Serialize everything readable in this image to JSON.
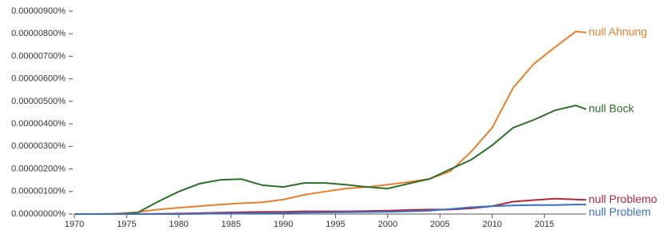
{
  "chart_data": {
    "type": "line",
    "x": [
      1970,
      1972,
      1974,
      1976,
      1978,
      1980,
      1982,
      1984,
      1986,
      1988,
      1990,
      1992,
      1994,
      1996,
      1998,
      2000,
      2002,
      2004,
      2006,
      2008,
      2010,
      2012,
      2014,
      2016,
      2018,
      2019
    ],
    "series": [
      {
        "name": "null Ahnung",
        "color": "#e8812d",
        "values": [
          0,
          0,
          2e-10,
          8e-10,
          2e-09,
          2.8e-09,
          3.5e-09,
          4.2e-09,
          4.8e-09,
          5.2e-09,
          6.4e-09,
          8.5e-09,
          1e-08,
          1.13e-08,
          1.2e-08,
          1.3e-08,
          1.42e-08,
          1.56e-08,
          1.9e-08,
          2.77e-08,
          3.83e-08,
          5.6e-08,
          6.67e-08,
          7.4e-08,
          8.1e-08,
          8.05e-08
        ]
      },
      {
        "name": "null Bock",
        "color": "#2f6e2a",
        "values": [
          0,
          0,
          0,
          5e-10,
          5.5e-09,
          1e-08,
          1.35e-08,
          1.52e-08,
          1.55e-08,
          1.28e-08,
          1.2e-08,
          1.38e-08,
          1.38e-08,
          1.3e-08,
          1.2e-08,
          1.13e-08,
          1.35e-08,
          1.56e-08,
          1.99e-08,
          2.41e-08,
          3.05e-08,
          3.83e-08,
          4.18e-08,
          4.6e-08,
          4.82e-08,
          4.65e-08
        ]
      },
      {
        "name": "null Problemo",
        "color": "#b5283a",
        "values": [
          0,
          0,
          0,
          0,
          1e-10,
          2e-10,
          4e-10,
          6e-10,
          8e-10,
          1e-09,
          1e-09,
          1.2e-09,
          1.2e-09,
          1.2e-09,
          1.3e-09,
          1.5e-09,
          1.8e-09,
          2e-09,
          2e-09,
          2.5e-09,
          3.5e-09,
          5.5e-09,
          6.2e-09,
          6.8e-09,
          6.5e-09,
          6.3e-09
        ]
      },
      {
        "name": "null Problem",
        "color": "#3a6fc8",
        "values": [
          0,
          0,
          0,
          0,
          0,
          0,
          1e-10,
          2e-10,
          3e-10,
          4e-10,
          5e-10,
          6e-10,
          7e-10,
          8e-10,
          9e-10,
          1e-09,
          1.2e-09,
          1.5e-09,
          2.2e-09,
          3e-09,
          3.5e-09,
          3.8e-09,
          4e-09,
          4e-09,
          4.2e-09,
          4.2e-09
        ]
      }
    ],
    "xlim": [
      1970,
      2019
    ],
    "xticks": [
      1970,
      1975,
      1980,
      1985,
      1990,
      1995,
      2000,
      2005,
      2010,
      2015
    ],
    "ylim": [
      0,
      9e-08
    ],
    "yticks": [
      {
        "value": 0,
        "label": "0.00000000%"
      },
      {
        "value": 1e-08,
        "label": "0.00000100%"
      },
      {
        "value": 2e-08,
        "label": "0.00000200%"
      },
      {
        "value": 3e-08,
        "label": "0.00000300%"
      },
      {
        "value": 4e-08,
        "label": "0.00000400%"
      },
      {
        "value": 5e-08,
        "label": "0.00000500%"
      },
      {
        "value": 6e-08,
        "label": "0.00000600%"
      },
      {
        "value": 7e-08,
        "label": "0.00000700%"
      },
      {
        "value": 8e-08,
        "label": "0.00000800%"
      },
      {
        "value": 9e-08,
        "label": "0.00000900%"
      }
    ],
    "grid": false
  }
}
